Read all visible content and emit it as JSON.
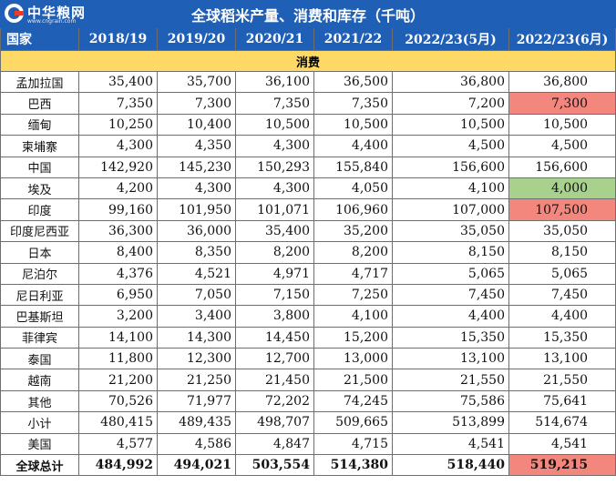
{
  "title": "全球稻米产量、消费和库存（千吨）",
  "logo": {
    "name": "中华粮网",
    "url": "www.cngrain.com"
  },
  "columns": [
    "国家",
    "2018/19",
    "2019/20",
    "2020/21",
    "2021/22",
    "2022/23(5月)",
    "2022/23(6月)"
  ],
  "section": "消费",
  "rows": [
    {
      "country": "孟加拉国",
      "values": [
        "35,400",
        "35,700",
        "36,100",
        "36,500",
        "36,800",
        "36,800"
      ]
    },
    {
      "country": "巴西",
      "values": [
        "7,350",
        "7,300",
        "7,350",
        "7,350",
        "7,200",
        "7,300"
      ],
      "highlight": "red"
    },
    {
      "country": "缅甸",
      "values": [
        "10,250",
        "10,400",
        "10,500",
        "10,500",
        "10,500",
        "10,500"
      ]
    },
    {
      "country": "柬埔寨",
      "values": [
        "4,300",
        "4,350",
        "4,300",
        "4,400",
        "4,500",
        "4,500"
      ]
    },
    {
      "country": "中国",
      "values": [
        "142,920",
        "145,230",
        "150,293",
        "155,840",
        "156,600",
        "156,600"
      ]
    },
    {
      "country": "埃及",
      "values": [
        "4,200",
        "4,300",
        "4,300",
        "4,050",
        "4,100",
        "4,000"
      ],
      "highlight": "green"
    },
    {
      "country": "印度",
      "values": [
        "99,160",
        "101,950",
        "101,071",
        "106,960",
        "107,000",
        "107,500"
      ],
      "highlight": "red"
    },
    {
      "country": "印度尼西亚",
      "values": [
        "36,300",
        "36,000",
        "35,400",
        "35,200",
        "35,050",
        "35,050"
      ]
    },
    {
      "country": "日本",
      "values": [
        "8,400",
        "8,350",
        "8,200",
        "8,200",
        "8,150",
        "8,150"
      ]
    },
    {
      "country": "尼泊尔",
      "values": [
        "4,376",
        "4,521",
        "4,971",
        "4,717",
        "5,065",
        "5,065"
      ]
    },
    {
      "country": "尼日利亚",
      "values": [
        "6,950",
        "7,050",
        "7,150",
        "7,250",
        "7,450",
        "7,450"
      ]
    },
    {
      "country": "巴基斯坦",
      "values": [
        "3,200",
        "3,400",
        "3,800",
        "4,100",
        "4,400",
        "4,400"
      ]
    },
    {
      "country": "菲律宾",
      "values": [
        "14,100",
        "14,300",
        "14,450",
        "15,200",
        "15,350",
        "15,350"
      ]
    },
    {
      "country": "泰国",
      "values": [
        "11,800",
        "12,300",
        "12,700",
        "13,000",
        "13,100",
        "13,100"
      ]
    },
    {
      "country": "越南",
      "values": [
        "21,200",
        "21,250",
        "21,450",
        "21,500",
        "21,550",
        "21,550"
      ]
    },
    {
      "country": "其他",
      "values": [
        "70,526",
        "71,977",
        "72,202",
        "74,245",
        "75,586",
        "75,641"
      ]
    },
    {
      "country": "小计",
      "values": [
        "480,415",
        "489,435",
        "498,707",
        "509,665",
        "513,899",
        "514,674"
      ]
    },
    {
      "country": "美国",
      "values": [
        "4,577",
        "4,586",
        "4,847",
        "4,715",
        "4,541",
        "4,541"
      ]
    },
    {
      "country": "全球总计",
      "values": [
        "484,992",
        "494,021",
        "503,554",
        "514,380",
        "518,440",
        "519,215"
      ],
      "highlight": "red",
      "bold": true
    }
  ],
  "colors": {
    "header_bg": "#1f5fb5",
    "section_bg": "#ffd966",
    "highlight_red": "#f4877d",
    "highlight_green": "#a9d18e"
  }
}
